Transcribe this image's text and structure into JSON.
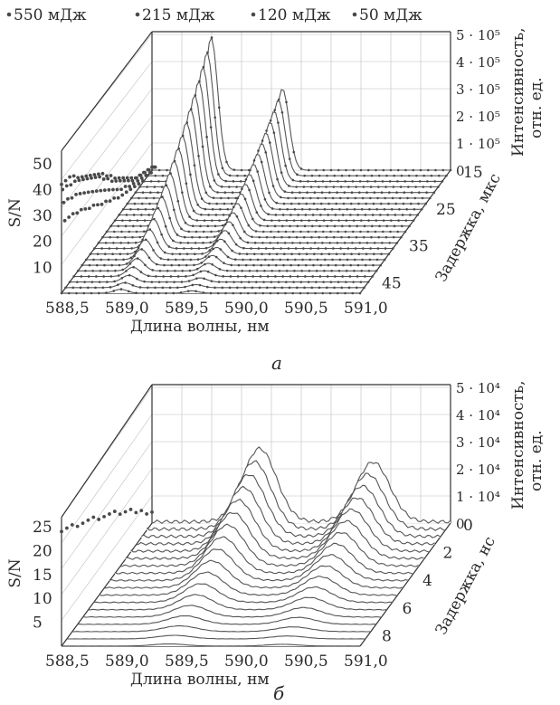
{
  "figure": {
    "legend": [
      "550 мДж",
      "215 мДж",
      "120 мДж",
      "50 мДж"
    ]
  },
  "chart_data": [
    {
      "panel_label": "а",
      "type": "line",
      "xlabel": "Длина волны, нм",
      "xticks": [
        "588,5",
        "589,0",
        "589,5",
        "590,0",
        "590,5",
        "591,0"
      ],
      "xlim": [
        588.5,
        591.0
      ],
      "ylabel": "Задержка, мкс",
      "yticks": [
        "15",
        "25",
        "35",
        "45"
      ],
      "ylim": [
        5,
        50
      ],
      "zlabel": "Интенсивность, отн. ед.",
      "zticks": [
        "0",
        "1 · 10⁵",
        "2 · 10⁵",
        "3 · 10⁵",
        "4 · 10⁵",
        "5 · 10⁵"
      ],
      "zlim": [
        0,
        500000
      ],
      "snr_label": "S/N",
      "snr_ticks": [
        "10",
        "20",
        "30",
        "40",
        "50"
      ],
      "snr_lim": [
        0,
        55
      ],
      "peaks_nm": [
        588.995,
        589.592
      ],
      "delays_us": [
        5,
        7,
        9,
        11,
        13,
        15,
        17,
        19,
        21,
        23,
        25,
        27,
        29,
        31,
        33,
        35,
        37,
        39,
        41,
        43,
        45,
        47,
        49
      ],
      "peak_max": [
        490000,
        300000
      ],
      "series": [
        {
          "name": "550 мДж",
          "marker": "circle",
          "snr": [
            1,
            2,
            3,
            4,
            5,
            7,
            9,
            11,
            13,
            15,
            18,
            20,
            23,
            25,
            27,
            29,
            31,
            33,
            35,
            38,
            40,
            41,
            42
          ]
        },
        {
          "name": "215 мДж",
          "marker": "circle",
          "snr": [
            1,
            2,
            3,
            4,
            5,
            6,
            8,
            10,
            12,
            14,
            16,
            19,
            21,
            24,
            26,
            28,
            30,
            32,
            34,
            36,
            37,
            39,
            40
          ]
        },
        {
          "name": "120 мДж",
          "marker": "triangle",
          "snr": [
            1,
            1,
            2,
            3,
            4,
            5,
            6,
            8,
            9,
            11,
            13,
            15,
            17,
            19,
            21,
            23,
            25,
            27,
            29,
            31,
            32,
            34,
            35
          ]
        },
        {
          "name": "50 мДж",
          "marker": "square",
          "snr": [
            1,
            1,
            2,
            2,
            3,
            4,
            5,
            6,
            7,
            8,
            10,
            11,
            13,
            14,
            16,
            18,
            19,
            21,
            23,
            24,
            26,
            27,
            28
          ]
        }
      ]
    },
    {
      "panel_label": "б",
      "type": "line",
      "xlabel": "Длина волны, нм",
      "xticks": [
        "588,5",
        "589,0",
        "589,5",
        "590,0",
        "590,5",
        "591,0"
      ],
      "xlim": [
        588.5,
        591.0
      ],
      "ylabel": "Задержка, нс",
      "yticks": [
        "0",
        "2",
        "4",
        "6",
        "8"
      ],
      "ylim": [
        0,
        9
      ],
      "zlabel": "Интенсивность, отн. ед.",
      "zticks": [
        "0",
        "1 · 10⁴",
        "2 · 10⁴",
        "3 · 10⁴",
        "4 · 10⁴",
        "5 · 10⁴"
      ],
      "zlim": [
        0,
        50000
      ],
      "snr_label": "S/N",
      "snr_ticks": [
        "5",
        "10",
        "15",
        "20",
        "25"
      ],
      "snr_lim": [
        0,
        27
      ],
      "peaks_nm": [
        589.4,
        590.35
      ],
      "delays_ns": [
        0,
        0.5,
        1,
        1.5,
        2,
        2.5,
        3,
        3.5,
        4,
        4.5,
        5,
        5.5,
        6,
        6.5,
        7,
        7.5,
        8,
        8.5
      ],
      "peak_max": [
        27000,
        22000
      ],
      "snr": [
        2,
        3,
        5,
        6,
        8,
        9,
        10,
        12,
        13,
        14,
        15,
        17,
        18,
        19,
        20,
        22,
        23,
        24
      ]
    }
  ]
}
